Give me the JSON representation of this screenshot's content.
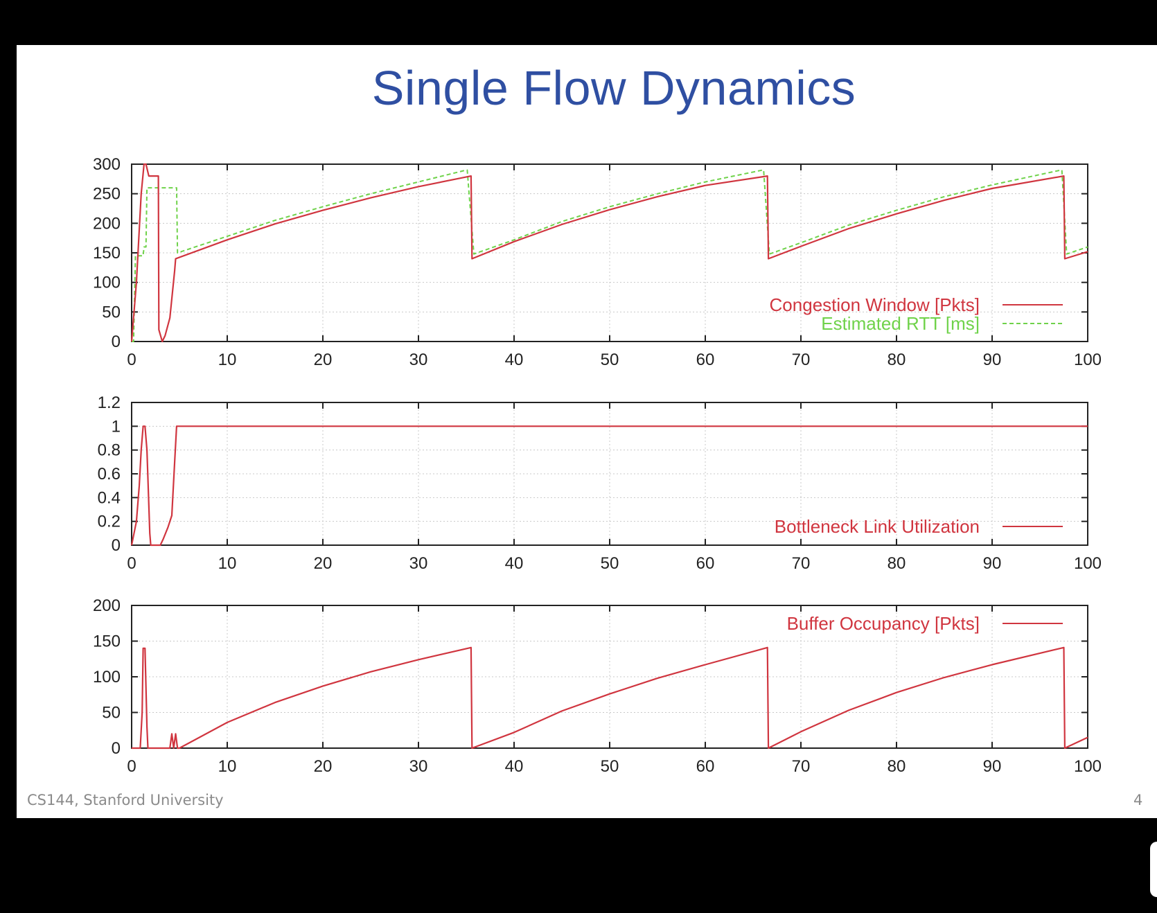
{
  "slide": {
    "title": "Single Flow Dynamics",
    "footer": "CS144, Stanford University",
    "page_number": "4"
  },
  "colors": {
    "title": "#2f4fa2",
    "cwnd": "#d0353f",
    "rtt": "#6fd24a",
    "grid": "#c8c8c8"
  },
  "chart_data": [
    {
      "type": "line",
      "xlim": [
        0,
        100
      ],
      "ylim": [
        0,
        300
      ],
      "x_ticks": [
        0,
        10,
        20,
        30,
        40,
        50,
        60,
        70,
        80,
        90,
        100
      ],
      "y_ticks": [
        0,
        50,
        100,
        150,
        200,
        250,
        300
      ],
      "grid": true,
      "legend_position": "bottom-right",
      "series": [
        {
          "name": "Congestion Window [Pkts]",
          "style": "solid",
          "color": "#d0353f",
          "x": [
            0,
            0.5,
            1.0,
            1.3,
            1.5,
            1.8,
            2.8,
            2.85,
            3.2,
            3.5,
            4.0,
            4.5,
            4.6,
            10,
            15,
            20,
            25,
            30,
            35.5,
            35.6,
            40,
            45,
            50,
            55,
            60,
            66.5,
            66.6,
            70,
            75,
            80,
            85,
            90,
            97.5,
            97.6,
            100
          ],
          "y": [
            0,
            100,
            250,
            300,
            300,
            280,
            280,
            20,
            0,
            10,
            40,
            120,
            140,
            172,
            199,
            222,
            243,
            262,
            280,
            140,
            169,
            198,
            223,
            245,
            264,
            280,
            140,
            161,
            191,
            216,
            239,
            259,
            280,
            140,
            152
          ]
        },
        {
          "name": "Estimated RTT [ms]",
          "style": "dashed",
          "color": "#6fd24a",
          "x": [
            0,
            0.2,
            0.4,
            1.2,
            1.3,
            1.5,
            1.6,
            4.7,
            4.8,
            10,
            15,
            20,
            25,
            30,
            35,
            35.1,
            35.8,
            40,
            45,
            50,
            55,
            60,
            66,
            66.1,
            66.7,
            70,
            75,
            80,
            85,
            90,
            97.2,
            97.3,
            97.8,
            100
          ],
          "y": [
            0,
            0,
            145,
            145,
            160,
            160,
            260,
            260,
            150,
            178,
            205,
            228,
            250,
            270,
            290,
            290,
            148,
            172,
            203,
            228,
            250,
            270,
            290,
            290,
            148,
            167,
            197,
            222,
            245,
            265,
            290,
            290,
            148,
            160
          ]
        }
      ]
    },
    {
      "type": "line",
      "xlim": [
        0,
        100
      ],
      "ylim": [
        0,
        1.2
      ],
      "x_ticks": [
        0,
        10,
        20,
        30,
        40,
        50,
        60,
        70,
        80,
        90,
        100
      ],
      "y_ticks": [
        0,
        0.2,
        0.4,
        0.6,
        0.8,
        1,
        1.2
      ],
      "y_tick_labels": [
        "0",
        "0.2",
        "0.4",
        "0.6",
        "0.8",
        "1",
        "1.2"
      ],
      "grid": true,
      "legend_position": "bottom-right",
      "series": [
        {
          "name": "Bottleneck Link Utilization",
          "style": "solid",
          "color": "#d0353f",
          "x": [
            0,
            0.5,
            0.8,
            1.0,
            1.2,
            1.4,
            1.6,
            1.9,
            2.0,
            3.0,
            3.3,
            3.8,
            4.2,
            4.5,
            4.7,
            100
          ],
          "y": [
            0,
            0.2,
            0.5,
            0.8,
            1.0,
            1.0,
            0.8,
            0.1,
            0,
            0,
            0.05,
            0.15,
            0.25,
            0.7,
            1.0,
            1.0
          ]
        }
      ]
    },
    {
      "type": "line",
      "xlim": [
        0,
        100
      ],
      "ylim": [
        0,
        200
      ],
      "x_ticks": [
        0,
        10,
        20,
        30,
        40,
        50,
        60,
        70,
        80,
        90,
        100
      ],
      "y_ticks": [
        0,
        50,
        100,
        150,
        200
      ],
      "grid": true,
      "legend_position": "top-right",
      "series": [
        {
          "name": "Buffer Occupancy [Pkts]",
          "style": "solid",
          "color": "#d0353f",
          "x": [
            0,
            0.9,
            1.1,
            1.2,
            1.4,
            1.6,
            1.7,
            1.8,
            4.0,
            4.2,
            4.4,
            4.6,
            4.8,
            5.0,
            10,
            15,
            20,
            25,
            30,
            35.5,
            35.6,
            40,
            45,
            50,
            55,
            60,
            66.5,
            66.6,
            70,
            75,
            80,
            85,
            90,
            97.5,
            97.6,
            100
          ],
          "y": [
            0,
            0,
            50,
            140,
            140,
            30,
            0,
            0,
            0,
            20,
            0,
            20,
            0,
            0,
            36,
            64,
            87,
            107,
            124,
            141,
            0,
            22,
            52,
            76,
            98,
            117,
            141,
            0,
            23,
            53,
            78,
            99,
            117,
            141,
            0,
            15
          ]
        }
      ]
    }
  ]
}
